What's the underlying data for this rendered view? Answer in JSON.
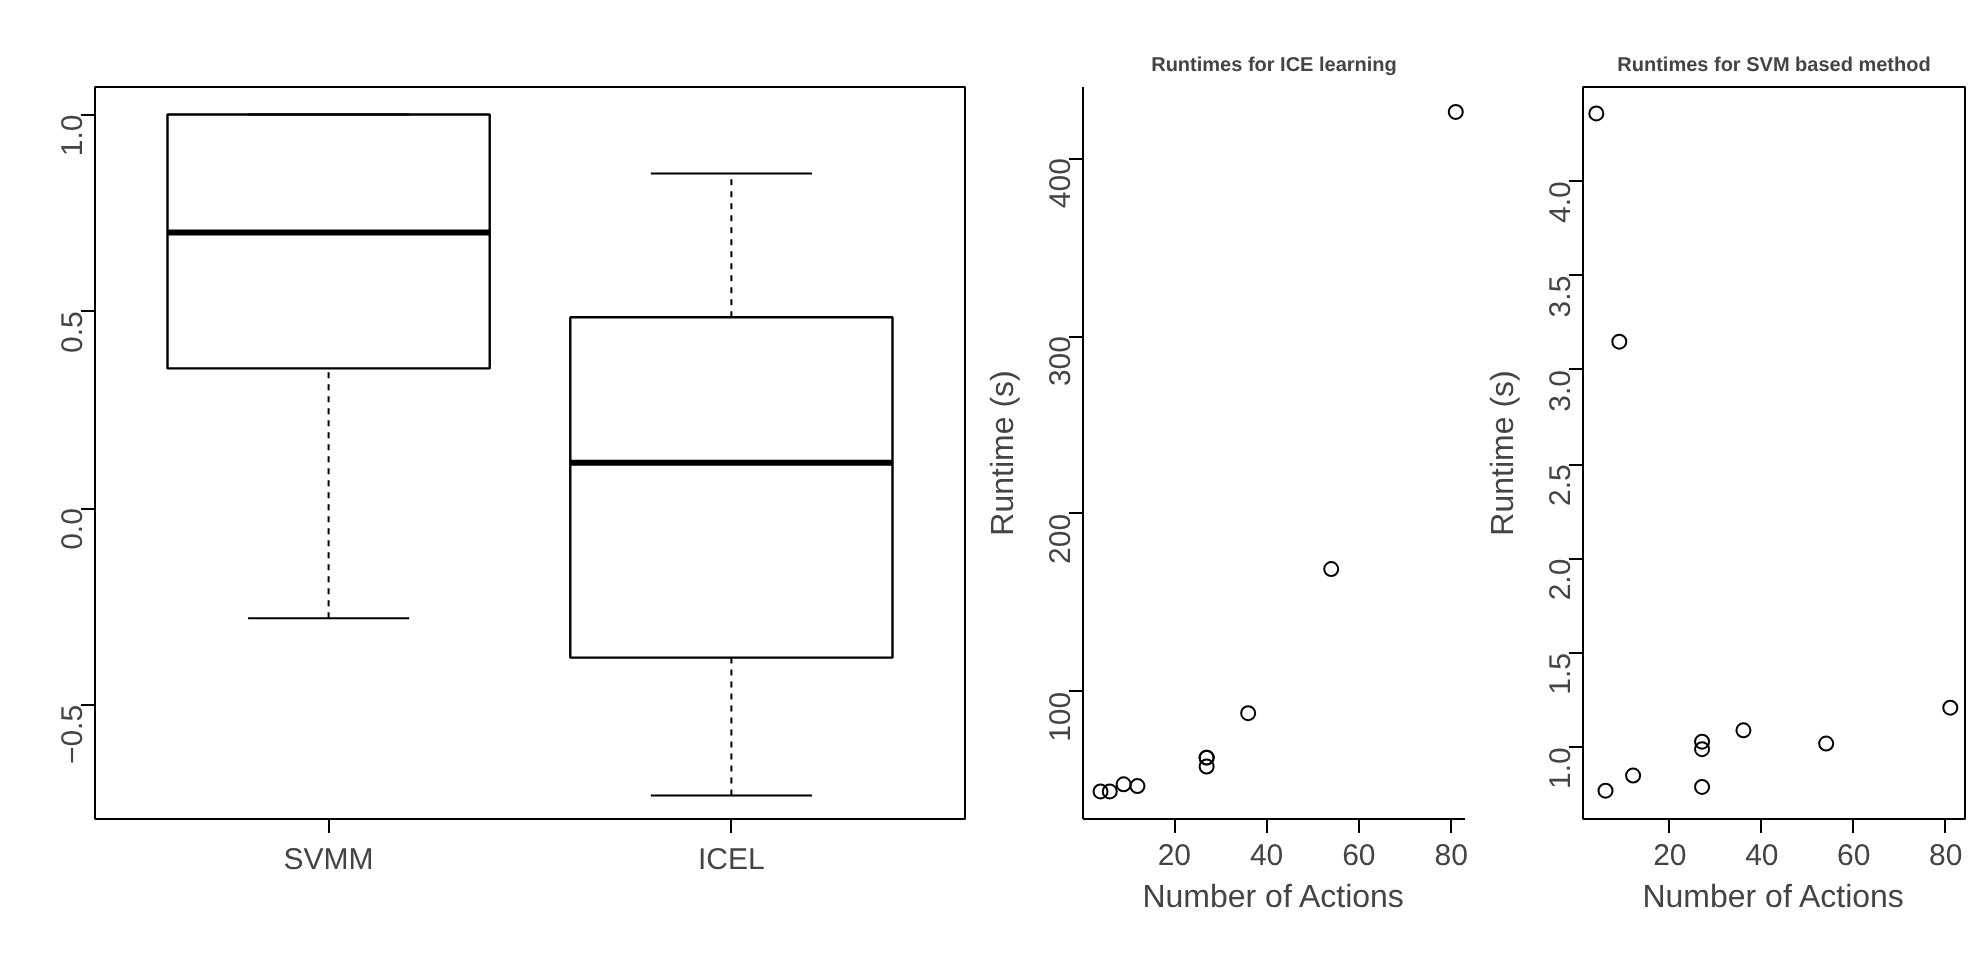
{
  "chart_data": [
    {
      "type": "box",
      "categories": [
        "SVMM",
        "ICEL"
      ],
      "ylim": [
        -0.79,
        1.07
      ],
      "yticks": [
        {
          "value": -0.5,
          "label": "−0.5"
        },
        {
          "value": 0,
          "label": "0.0"
        },
        {
          "value": 0.5,
          "label": "0.5"
        },
        {
          "value": 1,
          "label": "1.0"
        }
      ],
      "boxes": [
        {
          "low": -0.28,
          "q1": 0.355,
          "median": 0.7,
          "q3": 1.0,
          "high": 1.0
        },
        {
          "low": -0.73,
          "q1": -0.38,
          "median": 0.115,
          "q3": 0.485,
          "high": 0.85
        }
      ]
    },
    {
      "type": "scatter",
      "title": "Runtimes for ICE learning",
      "xlabel": "Number of Actions",
      "ylabel": "Runtime (s)",
      "marker": "circle",
      "x": [
        4,
        6,
        9,
        12,
        27,
        27,
        27,
        36,
        54,
        81
      ],
      "values": [
        44,
        44,
        48,
        47,
        58,
        63,
        63,
        88,
        169,
        426
      ],
      "xlim": [
        0.2,
        83
      ],
      "ylim": [
        28.5,
        440
      ],
      "xticks": [
        20,
        40,
        60,
        80
      ],
      "yticks": [
        100,
        200,
        300,
        400
      ]
    },
    {
      "type": "scatter",
      "title": "Runtimes for SVM based method",
      "xlabel": "Number of Actions",
      "ylabel": "Runtime (s)",
      "marker": "circle",
      "x": [
        4,
        9,
        6,
        12,
        27,
        27,
        27,
        36,
        54,
        81
      ],
      "values": [
        4.36,
        3.15,
        0.77,
        0.85,
        0.79,
        0.99,
        1.03,
        1.09,
        1.02,
        1.21
      ],
      "xlim": [
        1.1,
        84.2
      ],
      "ylim": [
        0.62,
        4.5
      ],
      "xticks": [
        20,
        40,
        60,
        80
      ],
      "yticks": [
        {
          "value": 1,
          "label": "1.0"
        },
        {
          "value": 1.5,
          "label": "1.5"
        },
        {
          "value": 2,
          "label": "2.0"
        },
        {
          "value": 2.5,
          "label": "2.5"
        },
        {
          "value": 3,
          "label": "3.0"
        },
        {
          "value": 3.5,
          "label": "3.5"
        },
        {
          "value": 4,
          "label": "4.0"
        }
      ]
    }
  ]
}
